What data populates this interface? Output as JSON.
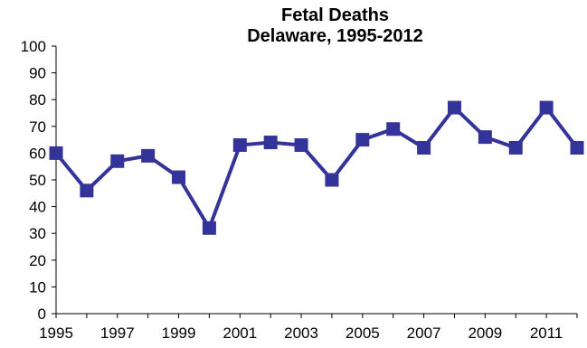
{
  "chart_data": {
    "type": "line",
    "title": "Fetal Deaths",
    "subtitle": "Delaware, 1995-2012",
    "xlabel": "",
    "ylabel": "",
    "x": [
      1995,
      1996,
      1997,
      1998,
      1999,
      2000,
      2001,
      2002,
      2003,
      2004,
      2005,
      2006,
      2007,
      2008,
      2009,
      2010,
      2011,
      2012
    ],
    "x_tick_labels": [
      "1995",
      "1997",
      "1999",
      "2001",
      "2003",
      "2005",
      "2007",
      "2009",
      "2011"
    ],
    "y_tick_labels": [
      "0",
      "10",
      "20",
      "30",
      "40",
      "50",
      "60",
      "70",
      "80",
      "90",
      "100"
    ],
    "series": [
      {
        "values": [
          60,
          46,
          57,
          59,
          51,
          32,
          63,
          64,
          63,
          50,
          65,
          69,
          62,
          77,
          66,
          62,
          77,
          62
        ]
      }
    ],
    "ylim": [
      0,
      100
    ],
    "grid": false,
    "legend": "none",
    "marker": "square",
    "color": "#333399"
  }
}
